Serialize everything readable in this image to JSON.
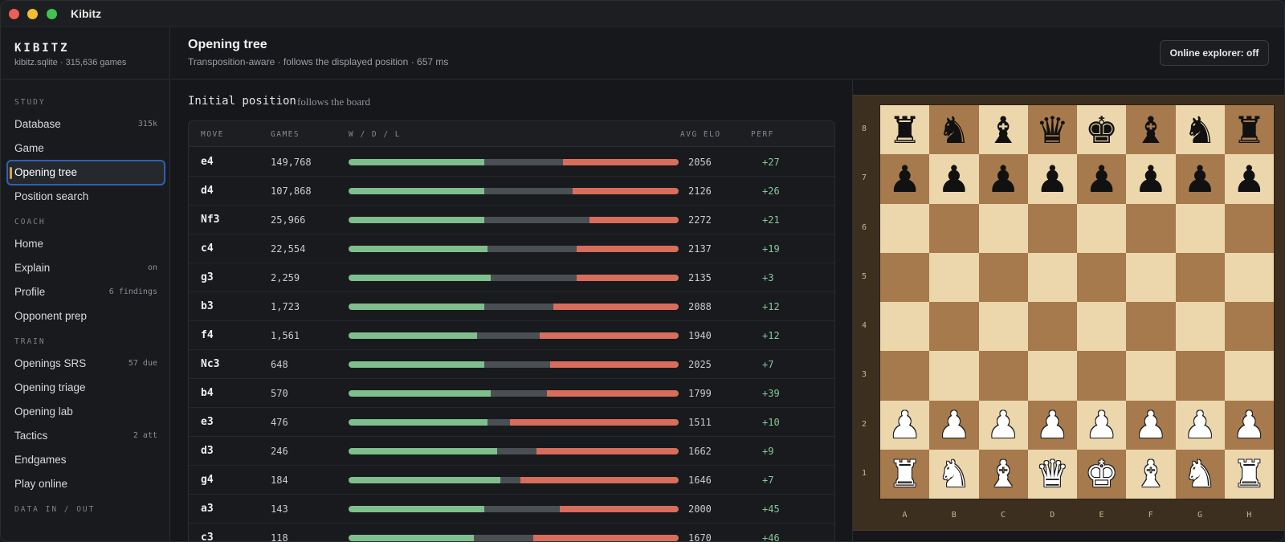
{
  "window": {
    "title": "Kibitz"
  },
  "sidebar": {
    "brand": "KIBITZ",
    "brand_sub": "kibitz.sqlite · 315,636 games",
    "sections": [
      {
        "label": "STUDY",
        "items": [
          {
            "label": "Database",
            "badge": "315k"
          },
          {
            "label": "Game",
            "badge": ""
          },
          {
            "label": "Opening tree",
            "badge": "",
            "active": true
          },
          {
            "label": "Position search",
            "badge": ""
          }
        ]
      },
      {
        "label": "COACH",
        "items": [
          {
            "label": "Home",
            "badge": ""
          },
          {
            "label": "Explain",
            "badge": "on"
          },
          {
            "label": "Profile",
            "badge": "6 findings"
          },
          {
            "label": "Opponent prep",
            "badge": ""
          }
        ]
      },
      {
        "label": "TRAIN",
        "items": [
          {
            "label": "Openings SRS",
            "badge": "57 due"
          },
          {
            "label": "Opening triage",
            "badge": ""
          },
          {
            "label": "Opening lab",
            "badge": ""
          },
          {
            "label": "Tactics",
            "badge": "2 att"
          },
          {
            "label": "Endgames",
            "badge": ""
          },
          {
            "label": "Play online",
            "badge": ""
          }
        ]
      },
      {
        "label": "DATA IN / OUT",
        "items": []
      }
    ]
  },
  "header": {
    "title": "Opening tree",
    "subtitle": "Transposition-aware · follows the displayed position · 657 ms",
    "explorer_button": "Online explorer: off"
  },
  "main": {
    "position_title": "Initial position",
    "position_sub": "follows the board",
    "columns": {
      "move": "MOVE",
      "games": "GAMES",
      "wdl": "W / D / L",
      "elo": "AVG ELO",
      "perf": "PERF"
    },
    "rows": [
      {
        "move": "e4",
        "games": "149,768",
        "w": 0.41,
        "d": 0.24,
        "l": 0.35,
        "elo": "2056",
        "perf": "+27"
      },
      {
        "move": "d4",
        "games": "107,868",
        "w": 0.41,
        "d": 0.27,
        "l": 0.32,
        "elo": "2126",
        "perf": "+26"
      },
      {
        "move": "Nf3",
        "games": "25,966",
        "w": 0.41,
        "d": 0.32,
        "l": 0.27,
        "elo": "2272",
        "perf": "+21"
      },
      {
        "move": "c4",
        "games": "22,554",
        "w": 0.42,
        "d": 0.27,
        "l": 0.31,
        "elo": "2137",
        "perf": "+19"
      },
      {
        "move": "g3",
        "games": "2,259",
        "w": 0.43,
        "d": 0.26,
        "l": 0.31,
        "elo": "2135",
        "perf": "+3"
      },
      {
        "move": "b3",
        "games": "1,723",
        "w": 0.41,
        "d": 0.21,
        "l": 0.38,
        "elo": "2088",
        "perf": "+12"
      },
      {
        "move": "f4",
        "games": "1,561",
        "w": 0.39,
        "d": 0.19,
        "l": 0.42,
        "elo": "1940",
        "perf": "+12"
      },
      {
        "move": "Nc3",
        "games": "648",
        "w": 0.41,
        "d": 0.2,
        "l": 0.39,
        "elo": "2025",
        "perf": "+7"
      },
      {
        "move": "b4",
        "games": "570",
        "w": 0.43,
        "d": 0.17,
        "l": 0.4,
        "elo": "1799",
        "perf": "+39"
      },
      {
        "move": "e3",
        "games": "476",
        "w": 0.42,
        "d": 0.07,
        "l": 0.51,
        "elo": "1511",
        "perf": "+10"
      },
      {
        "move": "d3",
        "games": "246",
        "w": 0.45,
        "d": 0.12,
        "l": 0.43,
        "elo": "1662",
        "perf": "+9"
      },
      {
        "move": "g4",
        "games": "184",
        "w": 0.46,
        "d": 0.06,
        "l": 0.48,
        "elo": "1646",
        "perf": "+7"
      },
      {
        "move": "a3",
        "games": "143",
        "w": 0.41,
        "d": 0.23,
        "l": 0.36,
        "elo": "2000",
        "perf": "+45"
      },
      {
        "move": "c3",
        "games": "118",
        "w": 0.38,
        "d": 0.18,
        "l": 0.44,
        "elo": "1670",
        "perf": "+46"
      }
    ]
  },
  "board": {
    "files": [
      "A",
      "B",
      "C",
      "D",
      "E",
      "F",
      "G",
      "H"
    ],
    "ranks": [
      "8",
      "7",
      "6",
      "5",
      "4",
      "3",
      "2",
      "1"
    ],
    "position": [
      [
        "bR",
        "bN",
        "bB",
        "bQ",
        "bK",
        "bB",
        "bN",
        "bR"
      ],
      [
        "bP",
        "bP",
        "bP",
        "bP",
        "bP",
        "bP",
        "bP",
        "bP"
      ],
      [
        "",
        "",
        "",
        "",
        "",
        "",
        "",
        ""
      ],
      [
        "",
        "",
        "",
        "",
        "",
        "",
        "",
        ""
      ],
      [
        "",
        "",
        "",
        "",
        "",
        "",
        "",
        ""
      ],
      [
        "",
        "",
        "",
        "",
        "",
        "",
        "",
        ""
      ],
      [
        "wP",
        "wP",
        "wP",
        "wP",
        "wP",
        "wP",
        "wP",
        "wP"
      ],
      [
        "wR",
        "wN",
        "wB",
        "wQ",
        "wK",
        "wB",
        "wN",
        "wR"
      ]
    ]
  }
}
